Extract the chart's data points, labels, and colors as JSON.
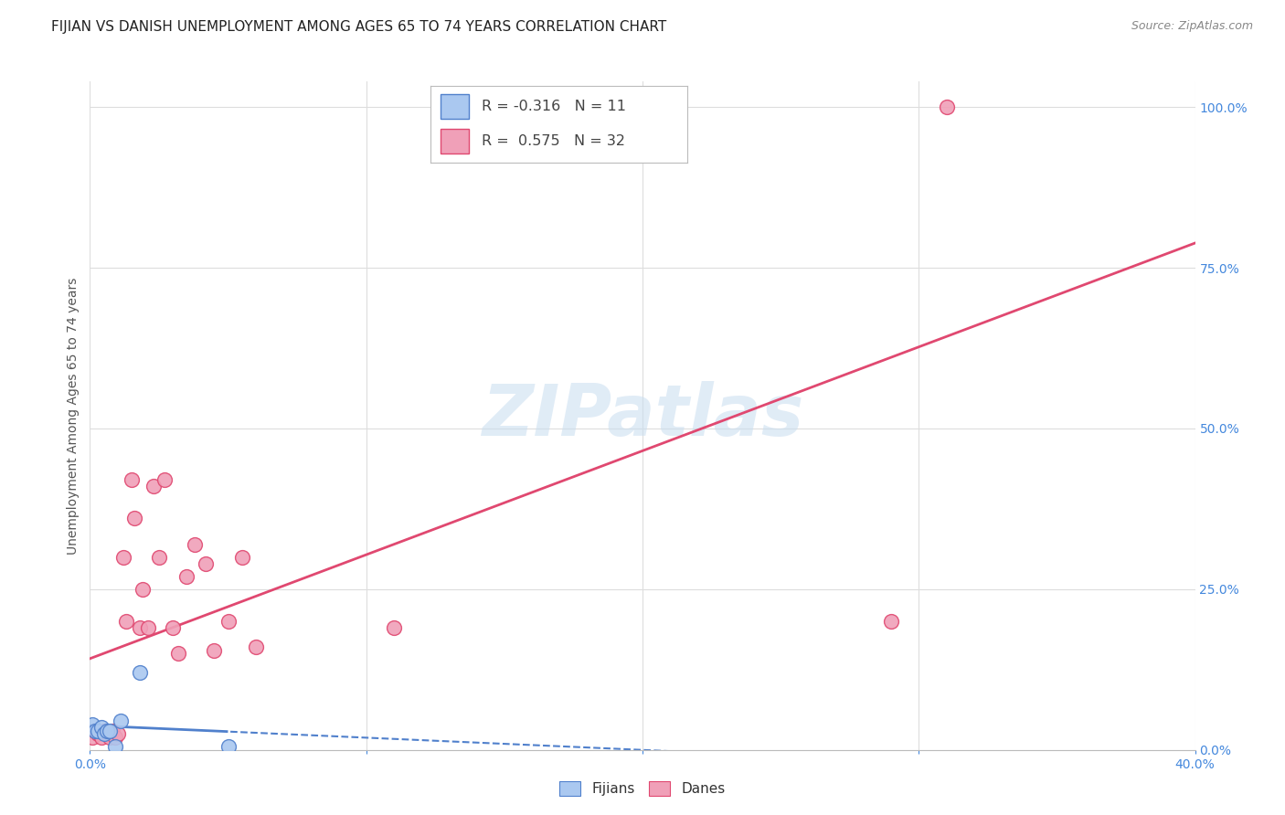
{
  "title": "FIJIAN VS DANISH UNEMPLOYMENT AMONG AGES 65 TO 74 YEARS CORRELATION CHART",
  "source": "Source: ZipAtlas.com",
  "ylabel": "Unemployment Among Ages 65 to 74 years",
  "background_color": "#ffffff",
  "watermark": "ZIPatlas",
  "fijian_x": [
    0.001,
    0.002,
    0.003,
    0.004,
    0.005,
    0.006,
    0.007,
    0.009,
    0.011,
    0.018,
    0.05
  ],
  "fijian_y": [
    0.04,
    0.03,
    0.03,
    0.035,
    0.025,
    0.03,
    0.03,
    0.005,
    0.045,
    0.12,
    0.005
  ],
  "danish_x": [
    0.001,
    0.002,
    0.003,
    0.004,
    0.005,
    0.006,
    0.007,
    0.008,
    0.009,
    0.01,
    0.012,
    0.013,
    0.015,
    0.016,
    0.018,
    0.019,
    0.021,
    0.023,
    0.025,
    0.027,
    0.03,
    0.032,
    0.035,
    0.038,
    0.042,
    0.045,
    0.05,
    0.055,
    0.06,
    0.11,
    0.29,
    0.31
  ],
  "danish_y": [
    0.02,
    0.03,
    0.025,
    0.02,
    0.03,
    0.025,
    0.02,
    0.03,
    0.02,
    0.025,
    0.3,
    0.2,
    0.42,
    0.36,
    0.19,
    0.25,
    0.19,
    0.41,
    0.3,
    0.42,
    0.19,
    0.15,
    0.27,
    0.32,
    0.29,
    0.155,
    0.2,
    0.3,
    0.16,
    0.19,
    0.2,
    1.0
  ],
  "r_fijian": -0.316,
  "n_fijian": 11,
  "r_danish": 0.575,
  "n_danish": 32,
  "fijian_color": "#aac8f0",
  "fijian_line_color": "#5080cc",
  "danish_color": "#f0a0b8",
  "danish_line_color": "#e04870",
  "xlim": [
    0,
    0.4
  ],
  "ylim": [
    0,
    1.04
  ],
  "yticks": [
    0.0,
    0.25,
    0.5,
    0.75,
    1.0
  ],
  "ytick_labels": [
    "0.0%",
    "25.0%",
    "50.0%",
    "75.0%",
    "100.0%"
  ],
  "xticks": [
    0.0,
    0.1,
    0.2,
    0.3,
    0.4
  ],
  "xtick_labels": [
    "0.0%",
    "",
    "",
    "",
    "40.0%"
  ],
  "grid_color": "#dddddd",
  "title_fontsize": 11,
  "axis_label_fontsize": 10,
  "tick_fontsize": 10,
  "source_fontsize": 9
}
